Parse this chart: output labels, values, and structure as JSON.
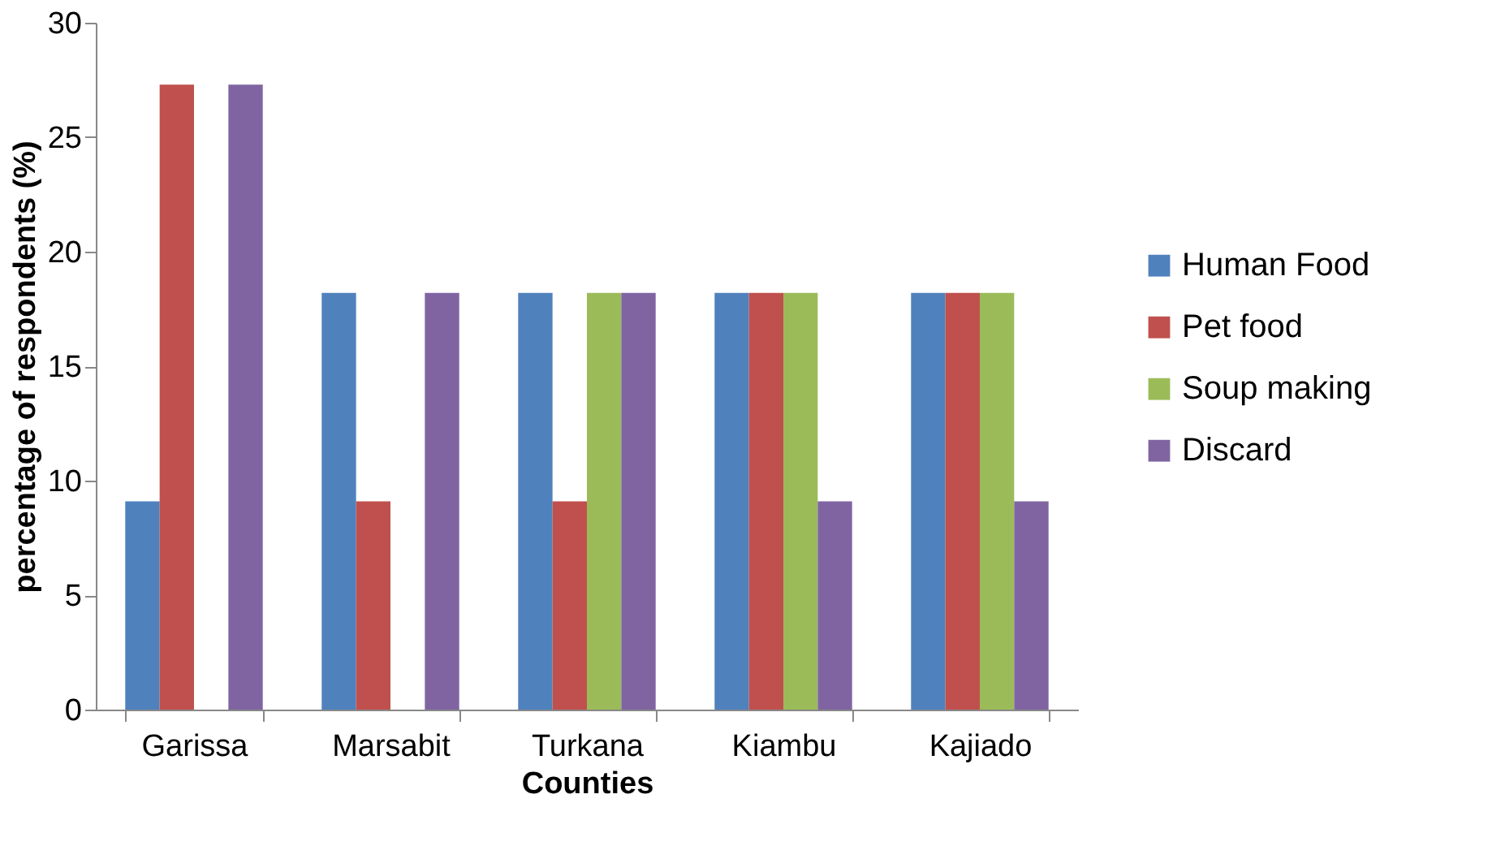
{
  "chart_data": {
    "type": "bar",
    "xlabel": "Counties",
    "ylabel": "percentage of respondents (%)",
    "categories": [
      "Garissa",
      "Marsabit",
      "Turkana",
      "Kiambu",
      "Kajiado"
    ],
    "series": [
      {
        "name": "Human Food",
        "color": "#4f81bd",
        "values": [
          9.1,
          18.2,
          18.2,
          18.2,
          18.2
        ]
      },
      {
        "name": "Pet food",
        "color": "#c0504d",
        "values": [
          27.3,
          9.1,
          9.1,
          18.2,
          18.2
        ]
      },
      {
        "name": "Soup making",
        "color": "#9bbb59",
        "values": [
          null,
          null,
          18.2,
          18.2,
          18.2
        ]
      },
      {
        "name": "Discard",
        "color": "#8064a2",
        "values": [
          27.3,
          18.2,
          18.2,
          9.1,
          9.1
        ]
      }
    ],
    "ylim": [
      0,
      30
    ],
    "yticks": [
      0,
      5,
      10,
      15,
      20,
      25,
      30
    ],
    "grid": false,
    "legend": "right"
  }
}
